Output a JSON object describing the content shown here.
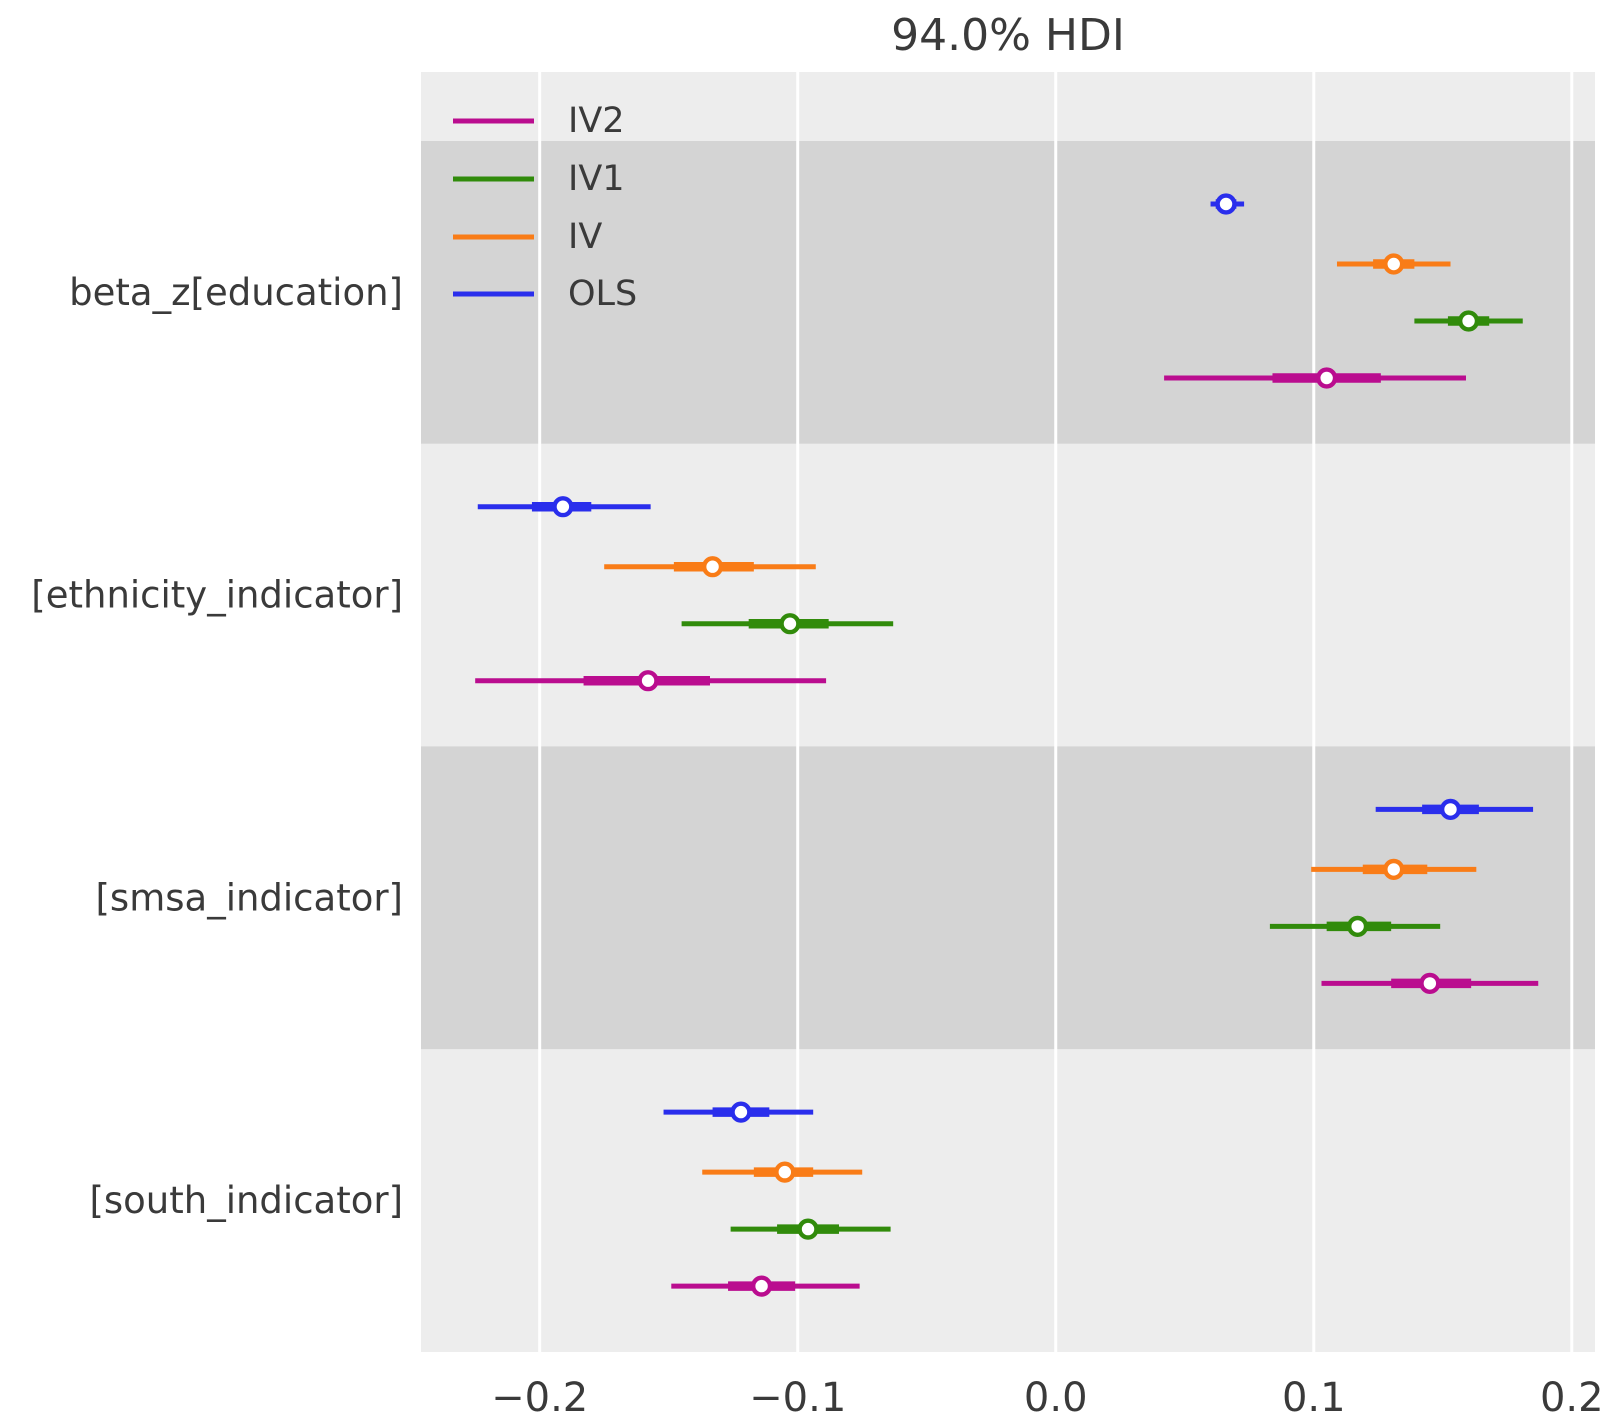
{
  "figure": {
    "background": "#ffffff",
    "plot_background": "#ededed",
    "shaded_band_color": "#d4d4d4",
    "gridline_color": "#ffffff",
    "text_color": "#3a3a3a",
    "marker_fill": "#ffffff"
  },
  "chart_data": {
    "type": "forest",
    "title": "94.0% HDI",
    "hdi_probability": 0.94,
    "xlim": [
      -0.246,
      0.209
    ],
    "x_ticks": [
      -0.2,
      -0.1,
      0.0,
      0.1,
      0.2
    ],
    "x_tick_labels": [
      "−0.2",
      "−0.1",
      "0.0",
      "0.1",
      "0.2"
    ],
    "grid": true,
    "legend_position": "upper left",
    "models": [
      {
        "name": "OLS",
        "color": "#2a2eec"
      },
      {
        "name": "IV",
        "color": "#f97c17"
      },
      {
        "name": "IV1",
        "color": "#318b0b"
      },
      {
        "name": "IV2",
        "color": "#ba0d8f"
      }
    ],
    "legend_order": [
      "IV2",
      "IV1",
      "IV",
      "OLS"
    ],
    "rows_order_top_to_bottom": [
      "OLS",
      "IV",
      "IV1",
      "IV2"
    ],
    "parameters": [
      {
        "label": "beta_z[education]",
        "shaded": true,
        "rows": [
          {
            "model": "OLS",
            "hdi": [
              0.06,
              0.073
            ],
            "interquartile": [
              0.062,
              0.07
            ],
            "median": 0.066
          },
          {
            "model": "IV",
            "hdi": [
              0.109,
              0.153
            ],
            "interquartile": [
              0.123,
              0.139
            ],
            "median": 0.131
          },
          {
            "model": "IV1",
            "hdi": [
              0.139,
              0.181
            ],
            "interquartile": [
              0.152,
              0.168
            ],
            "median": 0.16
          },
          {
            "model": "IV2",
            "hdi": [
              0.042,
              0.159
            ],
            "interquartile": [
              0.084,
              0.126
            ],
            "median": 0.105
          }
        ]
      },
      {
        "label": "[ethnicity_indicator]",
        "shaded": false,
        "rows": [
          {
            "model": "OLS",
            "hdi": [
              -0.224,
              -0.157
            ],
            "interquartile": [
              -0.203,
              -0.18
            ],
            "median": -0.191
          },
          {
            "model": "IV",
            "hdi": [
              -0.175,
              -0.093
            ],
            "interquartile": [
              -0.148,
              -0.117
            ],
            "median": -0.133
          },
          {
            "model": "IV1",
            "hdi": [
              -0.145,
              -0.063
            ],
            "interquartile": [
              -0.119,
              -0.088
            ],
            "median": -0.103
          },
          {
            "model": "IV2",
            "hdi": [
              -0.225,
              -0.089
            ],
            "interquartile": [
              -0.183,
              -0.134
            ],
            "median": -0.158
          }
        ]
      },
      {
        "label": "[smsa_indicator]",
        "shaded": true,
        "rows": [
          {
            "model": "OLS",
            "hdi": [
              0.124,
              0.185
            ],
            "interquartile": [
              0.142,
              0.164
            ],
            "median": 0.153
          },
          {
            "model": "IV",
            "hdi": [
              0.099,
              0.163
            ],
            "interquartile": [
              0.119,
              0.144
            ],
            "median": 0.131
          },
          {
            "model": "IV1",
            "hdi": [
              0.083,
              0.149
            ],
            "interquartile": [
              0.105,
              0.13
            ],
            "median": 0.117
          },
          {
            "model": "IV2",
            "hdi": [
              0.103,
              0.187
            ],
            "interquartile": [
              0.13,
              0.161
            ],
            "median": 0.145
          }
        ]
      },
      {
        "label": "[south_indicator]",
        "shaded": false,
        "rows": [
          {
            "model": "OLS",
            "hdi": [
              -0.152,
              -0.094
            ],
            "interquartile": [
              -0.133,
              -0.111
            ],
            "median": -0.122
          },
          {
            "model": "IV",
            "hdi": [
              -0.137,
              -0.075
            ],
            "interquartile": [
              -0.117,
              -0.094
            ],
            "median": -0.105
          },
          {
            "model": "IV1",
            "hdi": [
              -0.126,
              -0.064
            ],
            "interquartile": [
              -0.108,
              -0.084
            ],
            "median": -0.096
          },
          {
            "model": "IV2",
            "hdi": [
              -0.149,
              -0.076
            ],
            "interquartile": [
              -0.127,
              -0.101
            ],
            "median": -0.114
          }
        ]
      }
    ]
  }
}
